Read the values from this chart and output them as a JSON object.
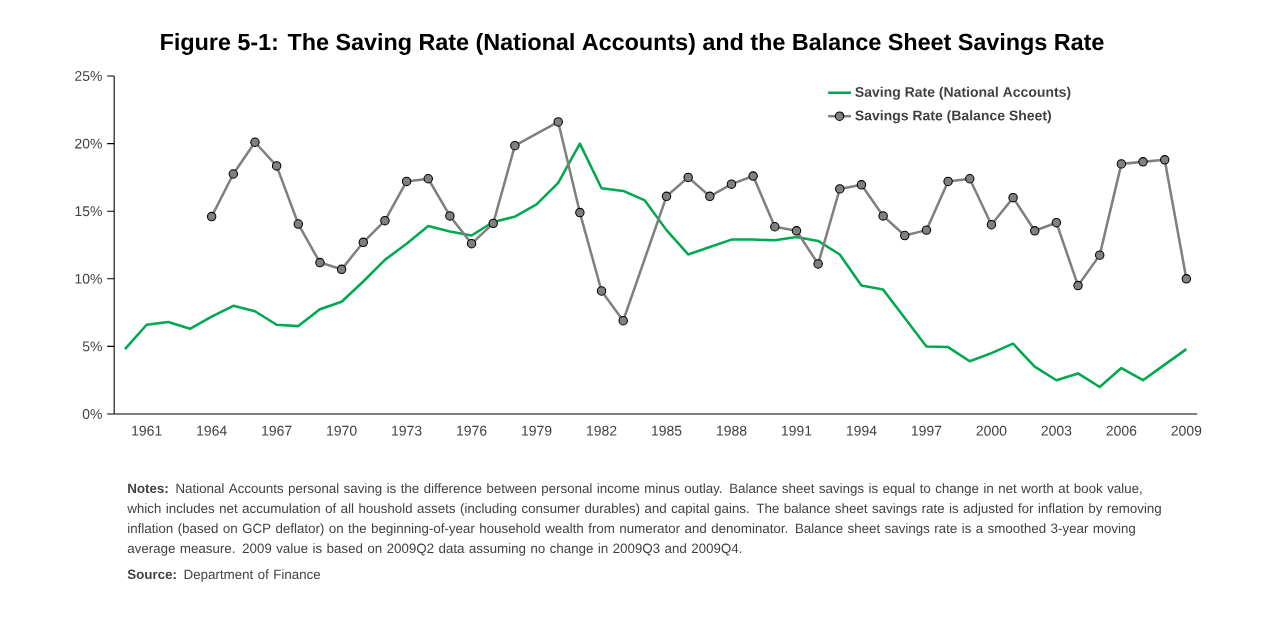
{
  "chart_data": {
    "type": "line",
    "title": "Figure 5-1: The Saving Rate (National Accounts) and the Balance Sheet Savings Rate",
    "categories": [
      null,
      "1961",
      null,
      null,
      "1964",
      null,
      null,
      "1967",
      null,
      null,
      "1970",
      null,
      null,
      "1973",
      null,
      null,
      "1976",
      null,
      null,
      "1979",
      null,
      null,
      "1982",
      null,
      null,
      "1985",
      null,
      null,
      "1988",
      null,
      null,
      "1991",
      null,
      null,
      "1994",
      null,
      null,
      "1997",
      null,
      null,
      "2000",
      null,
      null,
      "2003",
      null,
      null,
      "2006",
      null,
      null,
      "2009"
    ],
    "series": [
      {
        "name": "Saving Rate (National Accounts)",
        "color": "#00a84f",
        "marker": "none",
        "values": [
          4.8,
          6.6,
          6.8,
          6.3,
          7.2,
          8.0,
          7.6,
          6.6,
          6.5,
          7.75,
          8.3,
          9.8,
          11.4,
          12.6,
          13.9,
          13.5,
          13.2,
          14.2,
          14.6,
          15.5,
          17.1,
          20.0,
          16.7,
          16.5,
          15.8,
          13.6,
          11.8,
          12.35,
          12.9,
          12.9,
          12.85,
          13.1,
          12.8,
          11.8,
          9.5,
          9.2,
          7.1,
          5.0,
          4.95,
          3.9,
          4.5,
          5.2,
          3.5,
          2.5,
          3.0,
          2.0,
          3.4,
          2.5,
          3.65,
          4.8
        ]
      },
      {
        "name": "Savings Rate (Balance Sheet)",
        "color": "#808080",
        "marker": "circle",
        "values": [
          null,
          null,
          null,
          null,
          14.6,
          17.75,
          20.1,
          18.35,
          14.05,
          11.2,
          10.7,
          12.7,
          14.3,
          17.2,
          17.4,
          14.65,
          12.6,
          14.1,
          19.85,
          null,
          21.6,
          14.9,
          9.1,
          6.9,
          null,
          16.1,
          17.5,
          16.1,
          17.0,
          17.6,
          13.85,
          13.55,
          11.1,
          16.65,
          16.95,
          14.65,
          13.2,
          13.6,
          17.2,
          17.4,
          14.0,
          16.0,
          13.55,
          14.15,
          9.5,
          11.75,
          18.5,
          18.65,
          18.8,
          10.0
        ]
      }
    ],
    "ylim": [
      0,
      25
    ],
    "yticks": [
      {
        "value": 0,
        "label": "0%"
      },
      {
        "value": 5,
        "label": "5%"
      },
      {
        "value": 10,
        "label": "10%"
      },
      {
        "value": 15,
        "label": "15%"
      },
      {
        "value": 20,
        "label": "20%"
      },
      {
        "value": 25,
        "label": "25%"
      }
    ],
    "grid": false,
    "legend": "top right",
    "annotations": [
      "**Notes:** National Accounts personal saving is the difference between personal income minus outlay. Balance sheet savings is equal to change in net worth at book value, which includes net accumulation of all houshold assets (including consumer durables) and capital gains. The balance sheet savings rate is adjusted for inflation by removing inflation (based on GCP deflator) on the beginning-of-year household wealth from numerator and denominator. Balance sheet savings rate is a smoothed 3-year moving average measure. 2009 value is based on 2009Q2 data assuming no change in 2009Q3 and 2009Q4.",
      "**Source:** Department of Finance"
    ]
  }
}
